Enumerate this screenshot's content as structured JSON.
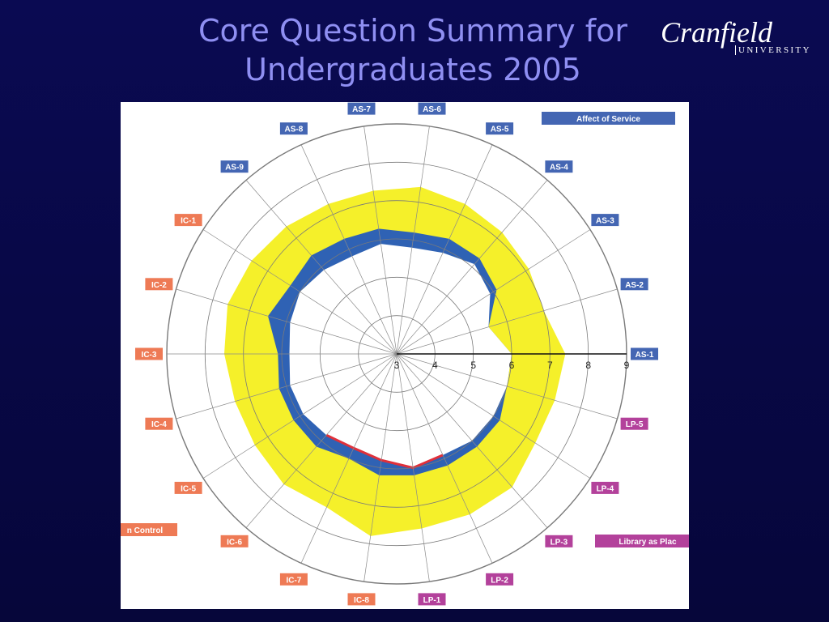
{
  "slide": {
    "title_line1": "Core Question Summary for",
    "title_line2": "Undergraduates 2005"
  },
  "logo": {
    "wordmark": "Cranfield",
    "subtitle": "UNIVERSITY"
  },
  "colors": {
    "background": "#0a0a52",
    "title": "#8f8ff2",
    "adequacy_band": "#f5f02a",
    "perceived_band": "#2f62b4",
    "shortfall": "#e0303a",
    "as_label": "#4466b3",
    "ic_label": "#ee7a55",
    "lp_label": "#b3419b"
  },
  "chart_data": {
    "type": "radar",
    "title": "",
    "r_range": [
      3,
      9
    ],
    "ticks": [
      "3",
      "4",
      "5",
      "6",
      "7",
      "8",
      "9"
    ],
    "grid": true,
    "categories": [
      "AS-1",
      "AS-2",
      "AS-3",
      "AS-4",
      "AS-5",
      "AS-6",
      "AS-7",
      "AS-8",
      "AS-9",
      "IC-1",
      "IC-2",
      "IC-3",
      "IC-4",
      "IC-5",
      "IC-6",
      "IC-7",
      "IC-8",
      "LP-1",
      "LP-2",
      "LP-3",
      "LP-4",
      "LP-5"
    ],
    "category_groups": [
      "AS",
      "AS",
      "AS",
      "AS",
      "AS",
      "AS",
      "AS",
      "AS",
      "AS",
      "IC",
      "IC",
      "IC",
      "IC",
      "IC",
      "IC",
      "IC",
      "IC",
      "LP",
      "LP",
      "LP",
      "LP",
      "LP"
    ],
    "legend": [
      {
        "key": "AS",
        "label": "Affect of Service"
      },
      {
        "key": "IC",
        "label": "n Control"
      },
      {
        "key": "LP",
        "label": "Library as Plac"
      }
    ],
    "series": [
      {
        "key": "desired",
        "values": [
          7.4,
          7.0,
          7.1,
          7.2,
          7.3,
          7.4,
          7.3,
          7.3,
          7.4,
          7.5,
          7.6,
          7.5,
          7.4,
          7.4,
          7.5,
          7.4,
          7.8,
          7.6,
          7.6,
          7.6,
          7.3,
          7.3
        ]
      },
      {
        "key": "perceived",
        "values": [
          6.0,
          5.5,
          6.1,
          6.3,
          6.3,
          6.2,
          6.3,
          6.3,
          6.4,
          6.3,
          6.5,
          6.1,
          6.2,
          6.2,
          6.2,
          6.0,
          6.2,
          6.2,
          6.2,
          6.2,
          6.2,
          6.0
        ]
      },
      {
        "key": "minimum",
        "values": [
          6.0,
          5.5,
          5.9,
          6.1,
          5.9,
          5.8,
          5.9,
          5.8,
          5.9,
          6.0,
          5.9,
          5.8,
          5.9,
          5.9,
          5.8,
          5.7,
          5.8,
          6.0,
          5.9,
          6.0,
          6.0,
          6.0
        ]
      }
    ]
  }
}
